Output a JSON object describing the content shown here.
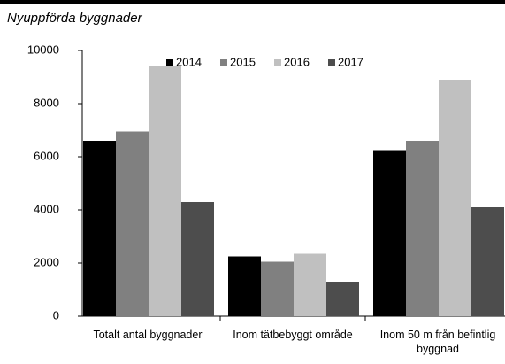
{
  "chart_data": {
    "type": "bar",
    "subtitle": "Nyuppförda byggnader",
    "categories": [
      "Totalt antal byggnader",
      "Inom tätbebyggt område",
      "Inom 50 m från befintlig byggnad"
    ],
    "series": [
      {
        "name": "2014",
        "color": "#000000",
        "values": [
          6600,
          2250,
          6250
        ]
      },
      {
        "name": "2015",
        "color": "#808080",
        "values": [
          6950,
          2050,
          6600
        ]
      },
      {
        "name": "2016",
        "color": "#c0c0c0",
        "values": [
          9400,
          2350,
          8900
        ]
      },
      {
        "name": "2017",
        "color": "#4d4d4d",
        "values": [
          4300,
          1300,
          4100
        ]
      }
    ],
    "ylim": [
      0,
      10000
    ],
    "yticks": [
      0,
      2000,
      4000,
      6000,
      8000,
      10000
    ],
    "grid": false,
    "legend": "top"
  }
}
